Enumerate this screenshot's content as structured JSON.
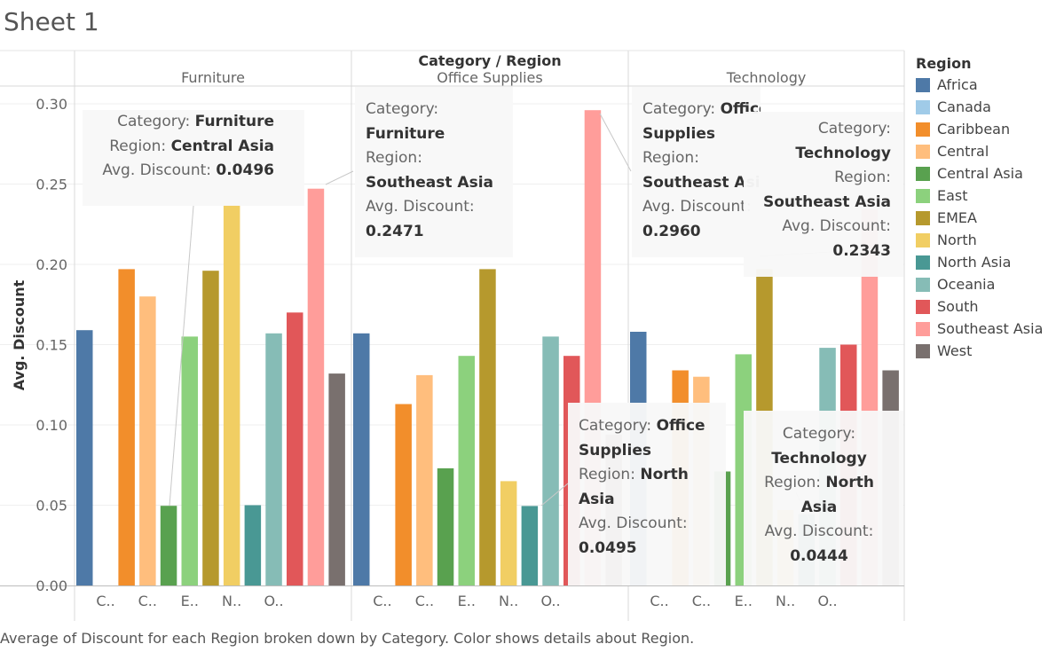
{
  "title": "Sheet 1",
  "caption": "Average of Discount for each Region broken down by Category.  Color shows details about Region.",
  "legend": {
    "title": "Region",
    "items": [
      {
        "label": "Africa",
        "color": "#4e79a7"
      },
      {
        "label": "Canada",
        "color": "#a0cbe8"
      },
      {
        "label": "Caribbean",
        "color": "#f28e2b"
      },
      {
        "label": "Central",
        "color": "#ffbe7d"
      },
      {
        "label": "Central Asia",
        "color": "#59a14f"
      },
      {
        "label": "East",
        "color": "#8cd17d"
      },
      {
        "label": "EMEA",
        "color": "#b6992d"
      },
      {
        "label": "North",
        "color": "#f1ce63"
      },
      {
        "label": "North Asia",
        "color": "#499894"
      },
      {
        "label": "Oceania",
        "color": "#86bcb6"
      },
      {
        "label": "South",
        "color": "#e15759"
      },
      {
        "label": "Southeast Asia",
        "color": "#ff9d9a"
      },
      {
        "label": "West",
        "color": "#79706e"
      }
    ]
  },
  "chart_data": {
    "type": "bar",
    "header": "Category / Region",
    "ylabel": "Avg. Discount",
    "ylim": [
      0,
      0.3
    ],
    "yticks": [
      "0.00",
      "0.05",
      "0.10",
      "0.15",
      "0.20",
      "0.25",
      "0.30"
    ],
    "grid": true,
    "legend_position": "right",
    "regions": [
      "Africa",
      "Canada",
      "Caribbean",
      "Central",
      "Central Asia",
      "East",
      "EMEA",
      "North",
      "North Asia",
      "Oceania",
      "South",
      "Southeast Asia",
      "West"
    ],
    "x_tick_labels": [
      "C..",
      "C..",
      "E..",
      "N..",
      "O.."
    ],
    "panels": [
      {
        "category": "Furniture",
        "values": [
          0.159,
          0,
          0.197,
          0.18,
          0.0496,
          0.155,
          0.196,
          0.237,
          0.05,
          0.157,
          0.17,
          0.2471,
          0.132
        ]
      },
      {
        "category": "Office Supplies",
        "values": [
          0.157,
          0,
          0.113,
          0.131,
          0.073,
          0.143,
          0.197,
          0.065,
          0.0495,
          0.155,
          0.143,
          0.296,
          0.094
        ]
      },
      {
        "category": "Technology",
        "values": [
          0.158,
          0,
          0.134,
          0.13,
          0.071,
          0.144,
          0.197,
          0.047,
          0.0444,
          0.148,
          0.15,
          0.2343,
          0.134
        ]
      }
    ]
  },
  "tooltips": [
    {
      "id": "tt1",
      "category_label": "Category:",
      "category": "Furniture",
      "region_label": "Region:",
      "region": "Central Asia",
      "value_label": "Avg. Discount:",
      "value": "0.0496"
    },
    {
      "id": "tt2",
      "category_label": "Category:",
      "category": "Furniture",
      "region_label": "Region:",
      "region": "Southeast Asia",
      "value_label": "Avg. Discount:",
      "value": "0.2471"
    },
    {
      "id": "tt3",
      "category_label": "Category:",
      "category_a": "Office",
      "category_b": "Supplies",
      "region_label": "Region:",
      "region": "Southeast Asia",
      "value_label": "Avg. Discount:",
      "value": "0.2960"
    },
    {
      "id": "tt4",
      "category_label": "Category:",
      "category": "Technology",
      "region_label": "Region:",
      "region": "Southeast Asia",
      "value_label": "Avg. Discount:",
      "value": "0.2343"
    },
    {
      "id": "tt5",
      "category_label": "Category:",
      "category_a": "Office",
      "category_b": "Supplies",
      "region_label": "Region:",
      "region_a": "North",
      "region_b": "Asia",
      "value_label": "Avg. Discount:",
      "value": "0.0495"
    },
    {
      "id": "tt6",
      "category_label": "Category:",
      "category": "Technology",
      "region_label": "Region:",
      "region_a": "North",
      "region_b": "Asia",
      "value_label": "Avg. Discount:",
      "value": "0.0444"
    }
  ]
}
